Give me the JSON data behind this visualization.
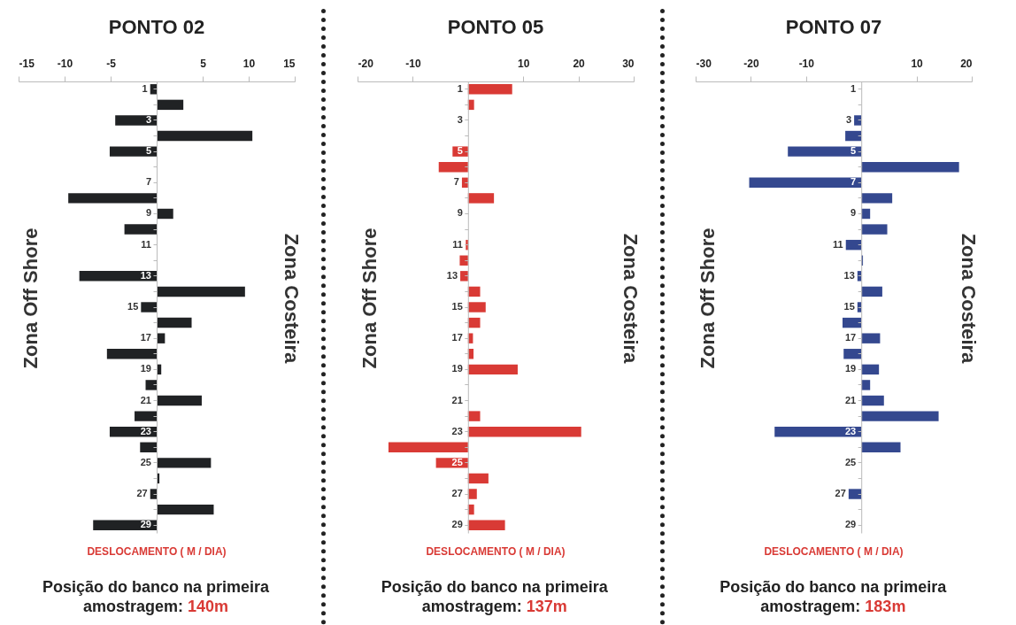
{
  "chart_data": [
    {
      "type": "bar",
      "orientation": "horizontal",
      "title": "PONTO 02",
      "xlabel": "DESLOCAMENTO ( M / DIA)",
      "color": "#202224",
      "categories": [
        "1",
        null,
        "3",
        null,
        "5",
        null,
        "7",
        null,
        "9",
        null,
        "11",
        null,
        "13",
        null,
        "15",
        null,
        "17",
        null,
        "19",
        null,
        "21",
        null,
        "23",
        null,
        "25",
        null,
        "27",
        null,
        "29"
      ],
      "values": [
        -0.7,
        2.9,
        -4.5,
        10.4,
        -5.1,
        null,
        null,
        -9.6,
        1.8,
        -3.5,
        null,
        null,
        -8.4,
        9.6,
        -1.7,
        3.8,
        0.9,
        -5.4,
        0.5,
        -1.2,
        4.9,
        -2.4,
        -5.1,
        -1.8,
        5.9,
        0.3,
        -0.7,
        6.2,
        -6.9
      ],
      "xlim": [
        -15,
        15
      ],
      "xticks": [
        -15,
        -10,
        -5,
        5,
        10,
        15
      ],
      "annotations": [
        "Zona Off Shore",
        "Zona Costeira",
        "Posição do banco na primeira amostragem: 140m"
      ]
    },
    {
      "type": "bar",
      "orientation": "horizontal",
      "title": "PONTO 05",
      "xlabel": "DESLOCAMENTO ( M / DIA)",
      "color": "#d93a35",
      "categories": [
        "1",
        null,
        "3",
        null,
        "5",
        null,
        "7",
        null,
        "9",
        null,
        "11",
        null,
        "13",
        null,
        "15",
        null,
        "17",
        null,
        "19",
        null,
        "21",
        null,
        "23",
        null,
        "25",
        null,
        "27",
        null,
        "29"
      ],
      "values": [
        8.0,
        1.1,
        null,
        null,
        -2.8,
        -5.3,
        -1.1,
        4.7,
        null,
        null,
        -0.4,
        -1.5,
        -1.4,
        2.2,
        3.2,
        2.2,
        0.9,
        1.0,
        9.0,
        null,
        null,
        2.2,
        20.5,
        -14.4,
        -5.8,
        3.7,
        1.6,
        1.1,
        6.7
      ],
      "xlim": [
        -20,
        30
      ],
      "xticks": [
        -20,
        -10,
        10,
        20,
        30
      ],
      "annotations": [
        "Zona Off Shore",
        "Zona Costeira",
        "Posição do banco na primeira amostragem: 137m"
      ]
    },
    {
      "type": "bar",
      "orientation": "horizontal",
      "title": "PONTO 07",
      "xlabel": "DESLOCAMENTO ( M / DIA)",
      "color": "#34488f",
      "categories": [
        "1",
        null,
        "3",
        null,
        "5",
        null,
        "7",
        null,
        "9",
        null,
        "11",
        null,
        "13",
        null,
        "15",
        null,
        "17",
        null,
        "19",
        null,
        "21",
        null,
        "23",
        null,
        "25",
        null,
        "27",
        null,
        "29"
      ],
      "values": [
        null,
        null,
        -1.3,
        -2.9,
        -13.3,
        17.7,
        -20.3,
        5.6,
        1.6,
        4.7,
        -2.8,
        0.3,
        -0.7,
        3.8,
        -0.7,
        -3.4,
        3.4,
        -3.2,
        3.2,
        1.6,
        4.1,
        14.0,
        -15.7,
        7.1,
        null,
        null,
        -2.3,
        null,
        null
      ],
      "xlim": [
        -30,
        20
      ],
      "xticks": [
        -30,
        -20,
        -10,
        10,
        20
      ],
      "annotations": [
        "Zona Off Shore",
        "Zona Costeira",
        "Posição do banco na primeira amostragem: 183m"
      ]
    }
  ]
}
